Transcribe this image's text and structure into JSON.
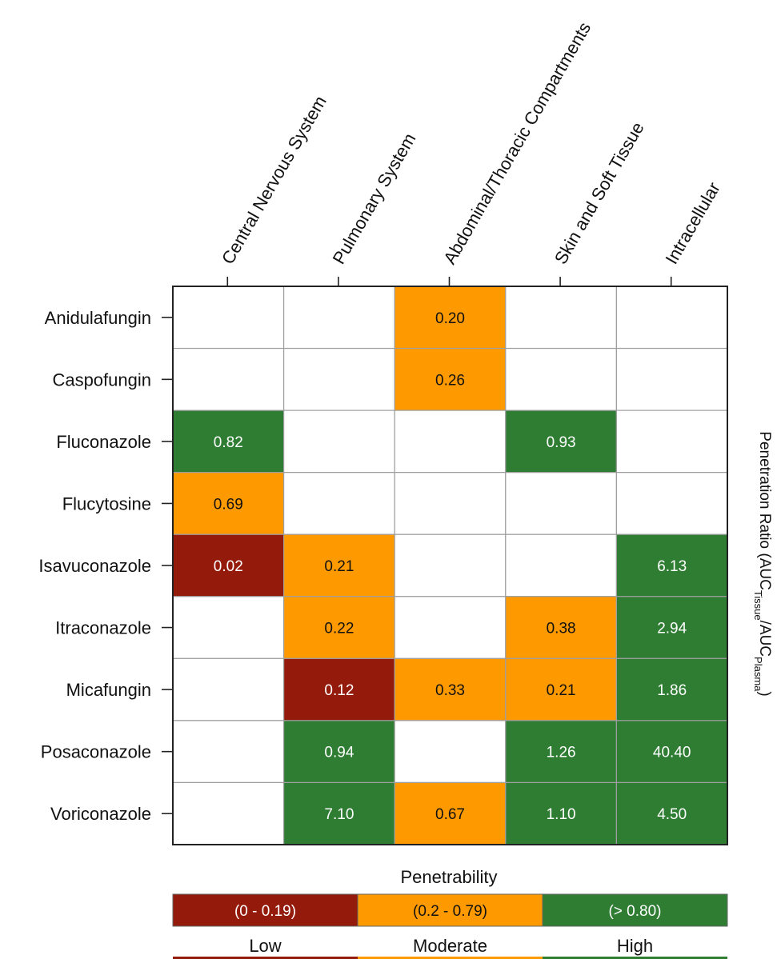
{
  "chart_data": {
    "type": "heatmap",
    "columns": [
      "Central Nervous System",
      "Pulmonary System",
      "Abdominal/Thoracic Compartments",
      "Skin and Soft Tissue",
      "Intracellular"
    ],
    "rows": [
      "Anidulafungin",
      "Caspofungin",
      "Fluconazole",
      "Flucytosine",
      "Isavuconazole",
      "Itraconazole",
      "Micafungin",
      "Posaconazole",
      "Voriconazole"
    ],
    "cells": [
      [
        null,
        null,
        0.2,
        null,
        null
      ],
      [
        null,
        null,
        0.26,
        null,
        null
      ],
      [
        0.82,
        null,
        null,
        0.93,
        null
      ],
      [
        0.69,
        null,
        null,
        null,
        null
      ],
      [
        0.02,
        0.21,
        null,
        null,
        6.13
      ],
      [
        null,
        0.22,
        null,
        0.38,
        2.94
      ],
      [
        null,
        0.12,
        0.33,
        0.21,
        1.86
      ],
      [
        null,
        0.94,
        null,
        1.26,
        40.4
      ],
      [
        null,
        7.1,
        0.67,
        1.1,
        4.5
      ]
    ],
    "cell_labels": [
      [
        null,
        null,
        "0.20",
        null,
        null
      ],
      [
        null,
        null,
        "0.26",
        null,
        null
      ],
      [
        "0.82",
        null,
        null,
        "0.93",
        null
      ],
      [
        "0.69",
        null,
        null,
        null,
        null
      ],
      [
        "0.02",
        "0.21",
        null,
        null,
        "6.13"
      ],
      [
        null,
        "0.22",
        null,
        "0.38",
        "2.94"
      ],
      [
        null,
        "0.12",
        "0.33",
        "0.21",
        "1.86"
      ],
      [
        null,
        "0.94",
        null,
        "1.26",
        "40.40"
      ],
      [
        null,
        "7.10",
        "0.67",
        "1.10",
        "4.50"
      ]
    ],
    "cell_categories": [
      [
        null,
        null,
        "moderate",
        null,
        null
      ],
      [
        null,
        null,
        "moderate",
        null,
        null
      ],
      [
        "high",
        null,
        null,
        "high",
        null
      ],
      [
        "moderate",
        null,
        null,
        null,
        null
      ],
      [
        "low",
        "moderate",
        null,
        null,
        "high"
      ],
      [
        null,
        "moderate",
        null,
        "moderate",
        "high"
      ],
      [
        null,
        "low",
        "moderate",
        "moderate",
        "high"
      ],
      [
        null,
        "high",
        null,
        "high",
        "high"
      ],
      [
        null,
        "high",
        "moderate",
        "high",
        "high"
      ]
    ],
    "ylabel_right": {
      "prefix": "Penetration Ratio (AUC",
      "sub1": "Tissue",
      "mid": "/AUC",
      "sub2": "Plasma",
      "suffix": ")"
    },
    "legend": {
      "title": "Penetrability",
      "position": "bottom",
      "entries": [
        {
          "key": "low",
          "range": "(0 - 0.19)",
          "label": "Low",
          "color": "#941B0C"
        },
        {
          "key": "moderate",
          "range": "(0.2 - 0.79)",
          "label": "Moderate",
          "color": "#FF9900"
        },
        {
          "key": "high",
          "range": "(> 0.80)",
          "label": "High",
          "color": "#2E7D32"
        }
      ]
    }
  },
  "colors": {
    "grid": "#9e9e9e",
    "border": "#222222",
    "empty_cell": "#ffffff",
    "text_dark": "#111111",
    "text_light": "#ffffff"
  }
}
